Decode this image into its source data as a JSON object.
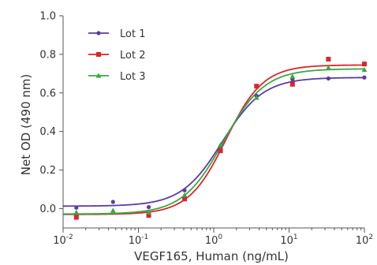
{
  "chart_data": {
    "type": "line",
    "xlabel": "VEGF165, Human (ng/mL)",
    "ylabel": "Net OD (490 nm)",
    "xscale": "log",
    "xlim": [
      0.01,
      100
    ],
    "ylim": [
      -0.1,
      1.0
    ],
    "x_ticks": [
      {
        "value": 0.01,
        "base": "10",
        "exp": "-2"
      },
      {
        "value": 0.1,
        "base": "10",
        "exp": "-1"
      },
      {
        "value": 1,
        "base": "10",
        "exp": "0"
      },
      {
        "value": 10,
        "base": "10",
        "exp": "1"
      },
      {
        "value": 100,
        "base": "10",
        "exp": "2"
      }
    ],
    "y_ticks": [
      {
        "value": 0.0,
        "label": "0.0"
      },
      {
        "value": 0.2,
        "label": "0.2"
      },
      {
        "value": 0.4,
        "label": "0.4"
      },
      {
        "value": 0.6,
        "label": "0.6"
      },
      {
        "value": 0.8,
        "label": "0.8"
      },
      {
        "value": 1.0,
        "label": "1.0"
      }
    ],
    "grid": false,
    "legend_position": "top-left",
    "series": [
      {
        "name": "Lot 1",
        "color": "#5b3c9e",
        "marker": "circle",
        "x": [
          0.015,
          0.046,
          0.137,
          0.41,
          1.23,
          3.7,
          11.1,
          33.3,
          100
        ],
        "y": [
          0.005,
          0.035,
          0.008,
          0.095,
          0.325,
          0.585,
          0.67,
          0.675,
          0.68
        ],
        "fit": {
          "bottom": 0.013,
          "top": 0.68,
          "ec50": 1.3,
          "hill": 1.6
        }
      },
      {
        "name": "Lot 2",
        "color": "#d9262c",
        "marker": "square",
        "x": [
          0.015,
          0.137,
          0.41,
          1.23,
          3.7,
          11.1,
          33.3,
          100
        ],
        "y": [
          -0.045,
          -0.035,
          0.05,
          0.3,
          0.635,
          0.645,
          0.775,
          0.75
        ],
        "fit": {
          "bottom": -0.03,
          "top": 0.745,
          "ec50": 1.45,
          "hill": 1.75
        }
      },
      {
        "name": "Lot 3",
        "color": "#3aa843",
        "marker": "triangle",
        "x": [
          0.015,
          0.046,
          0.137,
          0.41,
          1.23,
          3.7,
          11.1,
          33.3,
          100
        ],
        "y": [
          -0.02,
          -0.01,
          -0.02,
          0.07,
          0.33,
          0.575,
          0.685,
          0.73,
          0.72
        ],
        "fit": {
          "bottom": -0.028,
          "top": 0.725,
          "ec50": 1.35,
          "hill": 1.6
        }
      }
    ]
  }
}
